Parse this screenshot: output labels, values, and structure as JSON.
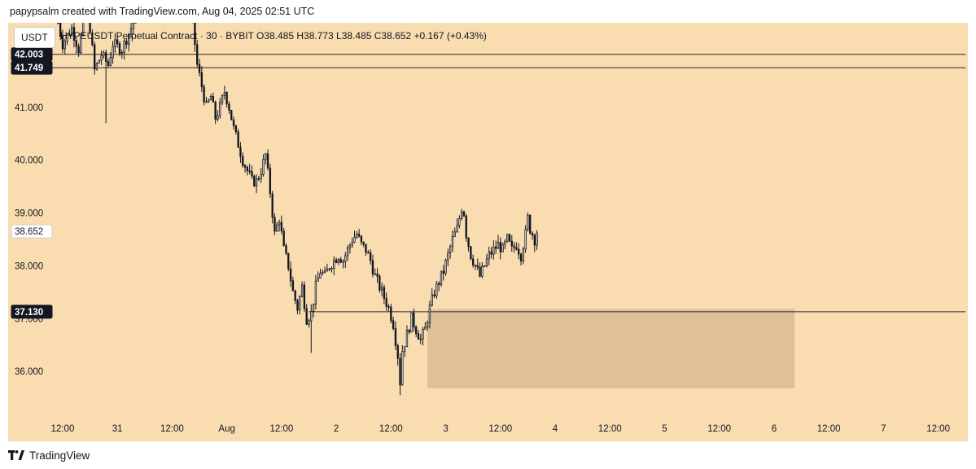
{
  "caption": "papypsalm created with TradingView.com, Aug 04, 2025 02:51 UTC",
  "brand": "TradingView",
  "legend": "HYPEUSDT Perpetual Contract · 30 · BYBIT   O38.485  H38.773  L38.485  C38.652  +0.167 (+0.43%)",
  "currency_label": "USDT",
  "colors": {
    "chart_background": "#f9dcb0",
    "candle": "#131722",
    "zone_fill": "#d9bc94",
    "level_line": "#2a2a2a",
    "tag_dark": "#131722",
    "tag_light": "#ffffff"
  },
  "chart_data": {
    "type": "candlestick",
    "symbol": "HYPEUSDT",
    "exchange": "BYBIT",
    "timeframe": "30",
    "ylim": [
      35,
      42.8
    ],
    "y_ticks": [
      36.0,
      37.0,
      38.0,
      39.0,
      40.0,
      41.0
    ],
    "y_tick_labels": [
      "36.000",
      "37.000",
      "38.000",
      "39.000",
      "40.000",
      "41.000"
    ],
    "x_ticks": [
      {
        "label": "12:00",
        "hours": -36
      },
      {
        "label": "31",
        "hours": -24
      },
      {
        "label": "12:00",
        "hours": -12
      },
      {
        "label": "Aug",
        "hours": 0
      },
      {
        "label": "12:00",
        "hours": 12
      },
      {
        "label": "2",
        "hours": 24
      },
      {
        "label": "12:00",
        "hours": 36
      },
      {
        "label": "3",
        "hours": 48
      },
      {
        "label": "12:00",
        "hours": 60
      },
      {
        "label": "4",
        "hours": 72
      },
      {
        "label": "12:00",
        "hours": 84
      },
      {
        "label": "5",
        "hours": 96
      },
      {
        "label": "12:00",
        "hours": 108
      },
      {
        "label": "6",
        "hours": 120
      },
      {
        "label": "12:00",
        "hours": 132
      },
      {
        "label": "7",
        "hours": 144
      },
      {
        "label": "12:00",
        "hours": 156
      }
    ],
    "horizontal_levels": [
      {
        "value": 42.003,
        "label": "42.003",
        "style": "dark",
        "from_hours": -41,
        "to_hours": 162
      },
      {
        "value": 41.749,
        "label": "41.749",
        "style": "dark",
        "from_hours": -41,
        "to_hours": 162
      },
      {
        "value": 37.13,
        "label": "37.130",
        "style": "dark",
        "from_hours": 18,
        "to_hours": 162
      }
    ],
    "last_price": {
      "value": 38.652,
      "label": "38.652",
      "style": "light"
    },
    "zone": {
      "x_from_hours": 44,
      "x_to_hours": 124.5,
      "y_low": 35.68,
      "y_high": 37.18
    },
    "price_path": [
      {
        "hours": -37,
        "price": 42.6
      },
      {
        "hours": -36,
        "price": 42.2
      },
      {
        "hours": -34,
        "price": 42.5
      },
      {
        "hours": -32.5,
        "price": 42.1
      },
      {
        "hours": -31,
        "price": 42.8
      },
      {
        "hours": -30,
        "price": 42.5
      },
      {
        "hours": -29,
        "price": 41.7
      },
      {
        "hours": -27.5,
        "price": 42.0
      },
      {
        "hours": -26,
        "price": 41.8
      },
      {
        "hours": -25,
        "price": 42.2
      },
      {
        "hours": -23,
        "price": 42.1
      },
      {
        "hours": -21,
        "price": 42.5
      },
      {
        "hours": -19,
        "price": 42.9
      },
      {
        "hours": -17,
        "price": 43.0
      },
      {
        "hours": -15,
        "price": 42.8
      },
      {
        "hours": -14,
        "price": 43.1
      },
      {
        "hours": -12,
        "price": 42.9
      },
      {
        "hours": -10,
        "price": 43.0
      },
      {
        "hours": -8.5,
        "price": 42.9
      },
      {
        "hours": -7.5,
        "price": 42.6
      },
      {
        "hours": -6.5,
        "price": 41.8
      },
      {
        "hours": -5.5,
        "price": 41.4
      },
      {
        "hours": -4.5,
        "price": 41.0
      },
      {
        "hours": -3.5,
        "price": 41.2
      },
      {
        "hours": -2.5,
        "price": 40.8
      },
      {
        "hours": -1.5,
        "price": 41.0
      },
      {
        "hours": -0.5,
        "price": 41.3
      },
      {
        "hours": 0.5,
        "price": 41.0
      },
      {
        "hours": 1.5,
        "price": 40.6
      },
      {
        "hours": 2.5,
        "price": 40.3
      },
      {
        "hours": 3.5,
        "price": 40.0
      },
      {
        "hours": 4.5,
        "price": 39.8
      },
      {
        "hours": 5.5,
        "price": 39.6
      },
      {
        "hours": 6.5,
        "price": 39.6
      },
      {
        "hours": 7.5,
        "price": 39.8
      },
      {
        "hours": 8.5,
        "price": 40.1
      },
      {
        "hours": 9.5,
        "price": 39.4
      },
      {
        "hours": 10.5,
        "price": 38.6
      },
      {
        "hours": 11.5,
        "price": 38.9
      },
      {
        "hours": 12.5,
        "price": 38.3
      },
      {
        "hours": 13.5,
        "price": 38.0
      },
      {
        "hours": 14.5,
        "price": 37.5
      },
      {
        "hours": 15.5,
        "price": 37.2
      },
      {
        "hours": 16.5,
        "price": 37.6
      },
      {
        "hours": 17.5,
        "price": 37.0
      },
      {
        "hours": 18.5,
        "price": 37.1
      },
      {
        "hours": 19.5,
        "price": 37.6
      },
      {
        "hours": 20.5,
        "price": 37.9
      },
      {
        "hours": 21.5,
        "price": 37.8
      },
      {
        "hours": 22.5,
        "price": 38.0
      },
      {
        "hours": 23.5,
        "price": 38.1
      },
      {
        "hours": 24.5,
        "price": 38.2
      },
      {
        "hours": 25.5,
        "price": 38.1
      },
      {
        "hours": 26.5,
        "price": 38.3
      },
      {
        "hours": 27.5,
        "price": 38.5
      },
      {
        "hours": 28.5,
        "price": 38.6
      },
      {
        "hours": 29.5,
        "price": 38.4
      },
      {
        "hours": 30.5,
        "price": 38.3
      },
      {
        "hours": 31.5,
        "price": 38.1
      },
      {
        "hours": 32.5,
        "price": 37.8
      },
      {
        "hours": 33.5,
        "price": 37.6
      },
      {
        "hours": 34.5,
        "price": 37.4
      },
      {
        "hours": 35.5,
        "price": 37.2
      },
      {
        "hours": 36.5,
        "price": 36.9
      },
      {
        "hours": 37.5,
        "price": 36.3
      },
      {
        "hours": 38,
        "price": 35.8
      },
      {
        "hours": 38.5,
        "price": 36.4
      },
      {
        "hours": 39.5,
        "price": 36.7
      },
      {
        "hours": 40.5,
        "price": 37.0
      },
      {
        "hours": 41.5,
        "price": 36.8
      },
      {
        "hours": 42.5,
        "price": 36.6
      },
      {
        "hours": 43.5,
        "price": 36.8
      },
      {
        "hours": 44.5,
        "price": 37.2
      },
      {
        "hours": 45.5,
        "price": 37.5
      },
      {
        "hours": 46.5,
        "price": 37.7
      },
      {
        "hours": 47.5,
        "price": 37.9
      },
      {
        "hours": 48.5,
        "price": 38.2
      },
      {
        "hours": 49.5,
        "price": 38.5
      },
      {
        "hours": 50.5,
        "price": 38.7
      },
      {
        "hours": 51.5,
        "price": 39.1
      },
      {
        "hours": 52,
        "price": 39.0
      },
      {
        "hours": 52.5,
        "price": 38.6
      },
      {
        "hours": 53.5,
        "price": 38.2
      },
      {
        "hours": 54.5,
        "price": 38.0
      },
      {
        "hours": 55.5,
        "price": 37.8
      },
      {
        "hours": 56.5,
        "price": 38.0
      },
      {
        "hours": 57.5,
        "price": 38.2
      },
      {
        "hours": 58.5,
        "price": 38.3
      },
      {
        "hours": 59.5,
        "price": 38.4
      },
      {
        "hours": 60.5,
        "price": 38.3
      },
      {
        "hours": 61.5,
        "price": 38.5
      },
      {
        "hours": 62.5,
        "price": 38.3
      },
      {
        "hours": 63.5,
        "price": 38.4
      },
      {
        "hours": 64.5,
        "price": 38.2
      },
      {
        "hours": 65.5,
        "price": 38.6
      },
      {
        "hours": 66,
        "price": 38.9
      },
      {
        "hours": 66.5,
        "price": 38.7
      },
      {
        "hours": 67.5,
        "price": 38.5
      },
      {
        "hours": 68,
        "price": 38.65
      }
    ]
  }
}
